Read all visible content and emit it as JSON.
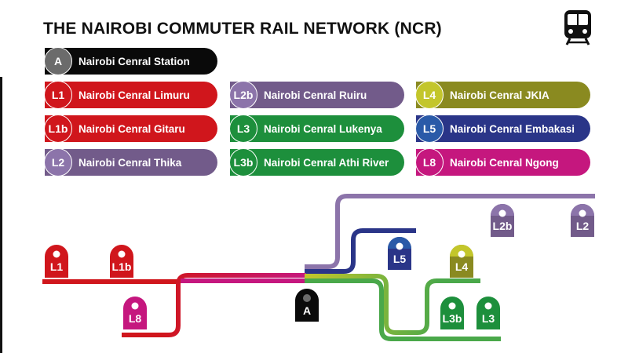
{
  "title": "THE NAIROBI COMMUTER RAIL NETWORK (NCR)",
  "icon": "train-icon",
  "legend": [
    {
      "code": "A",
      "label": "Nairobi Cenral Station",
      "color": "#0a0a0a",
      "badge": "#6b6b6b"
    },
    {
      "code": "L1",
      "label": "Nairobi Cenral Limuru",
      "color": "#d0161c",
      "badge": "#d0161c"
    },
    {
      "code": "L2b",
      "label": "Nairobi Cenral Ruiru",
      "color": "#725b8a",
      "badge": "#8c74aa"
    },
    {
      "code": "L4",
      "label": "Nairobi Cenral JKIA",
      "color": "#8a8a20",
      "badge": "#c3c62b"
    },
    {
      "code": "L1b",
      "label": "Nairobi Cenral Gitaru",
      "color": "#d0161c",
      "badge": "#d0161c"
    },
    {
      "code": "L3",
      "label": "Nairobi Cenral Lukenya",
      "color": "#1d8f3c",
      "badge": "#1d8f3c"
    },
    {
      "code": "L5",
      "label": "Nairobi Cenral Embakasi",
      "color": "#2a3588",
      "badge": "#2a5aa8"
    },
    {
      "code": "L2",
      "label": "Nairobi Cenral Thika",
      "color": "#725b8a",
      "badge": "#8c74aa"
    },
    {
      "code": "L3b",
      "label": "Nairobi Cenral Athi River",
      "color": "#1d8f3c",
      "badge": "#1d8f3c"
    },
    {
      "code": "L8",
      "label": "Nairobi Cenral Ngong",
      "color": "#c5177e",
      "badge": "#c5177e"
    }
  ],
  "map_pins": [
    {
      "code": "L1",
      "color": "#d0161c"
    },
    {
      "code": "L1b",
      "color": "#d0161c"
    },
    {
      "code": "L8",
      "color": "#c5177e"
    },
    {
      "code": "A",
      "color": "#0a0a0a"
    },
    {
      "code": "L5",
      "color": "#2a3588"
    },
    {
      "code": "L4",
      "color": "#8a8a20"
    },
    {
      "code": "L2b",
      "color": "#725b8a"
    },
    {
      "code": "L2",
      "color": "#725b8a"
    },
    {
      "code": "L3b",
      "color": "#1d8f3c"
    },
    {
      "code": "L3",
      "color": "#1d8f3c"
    }
  ]
}
